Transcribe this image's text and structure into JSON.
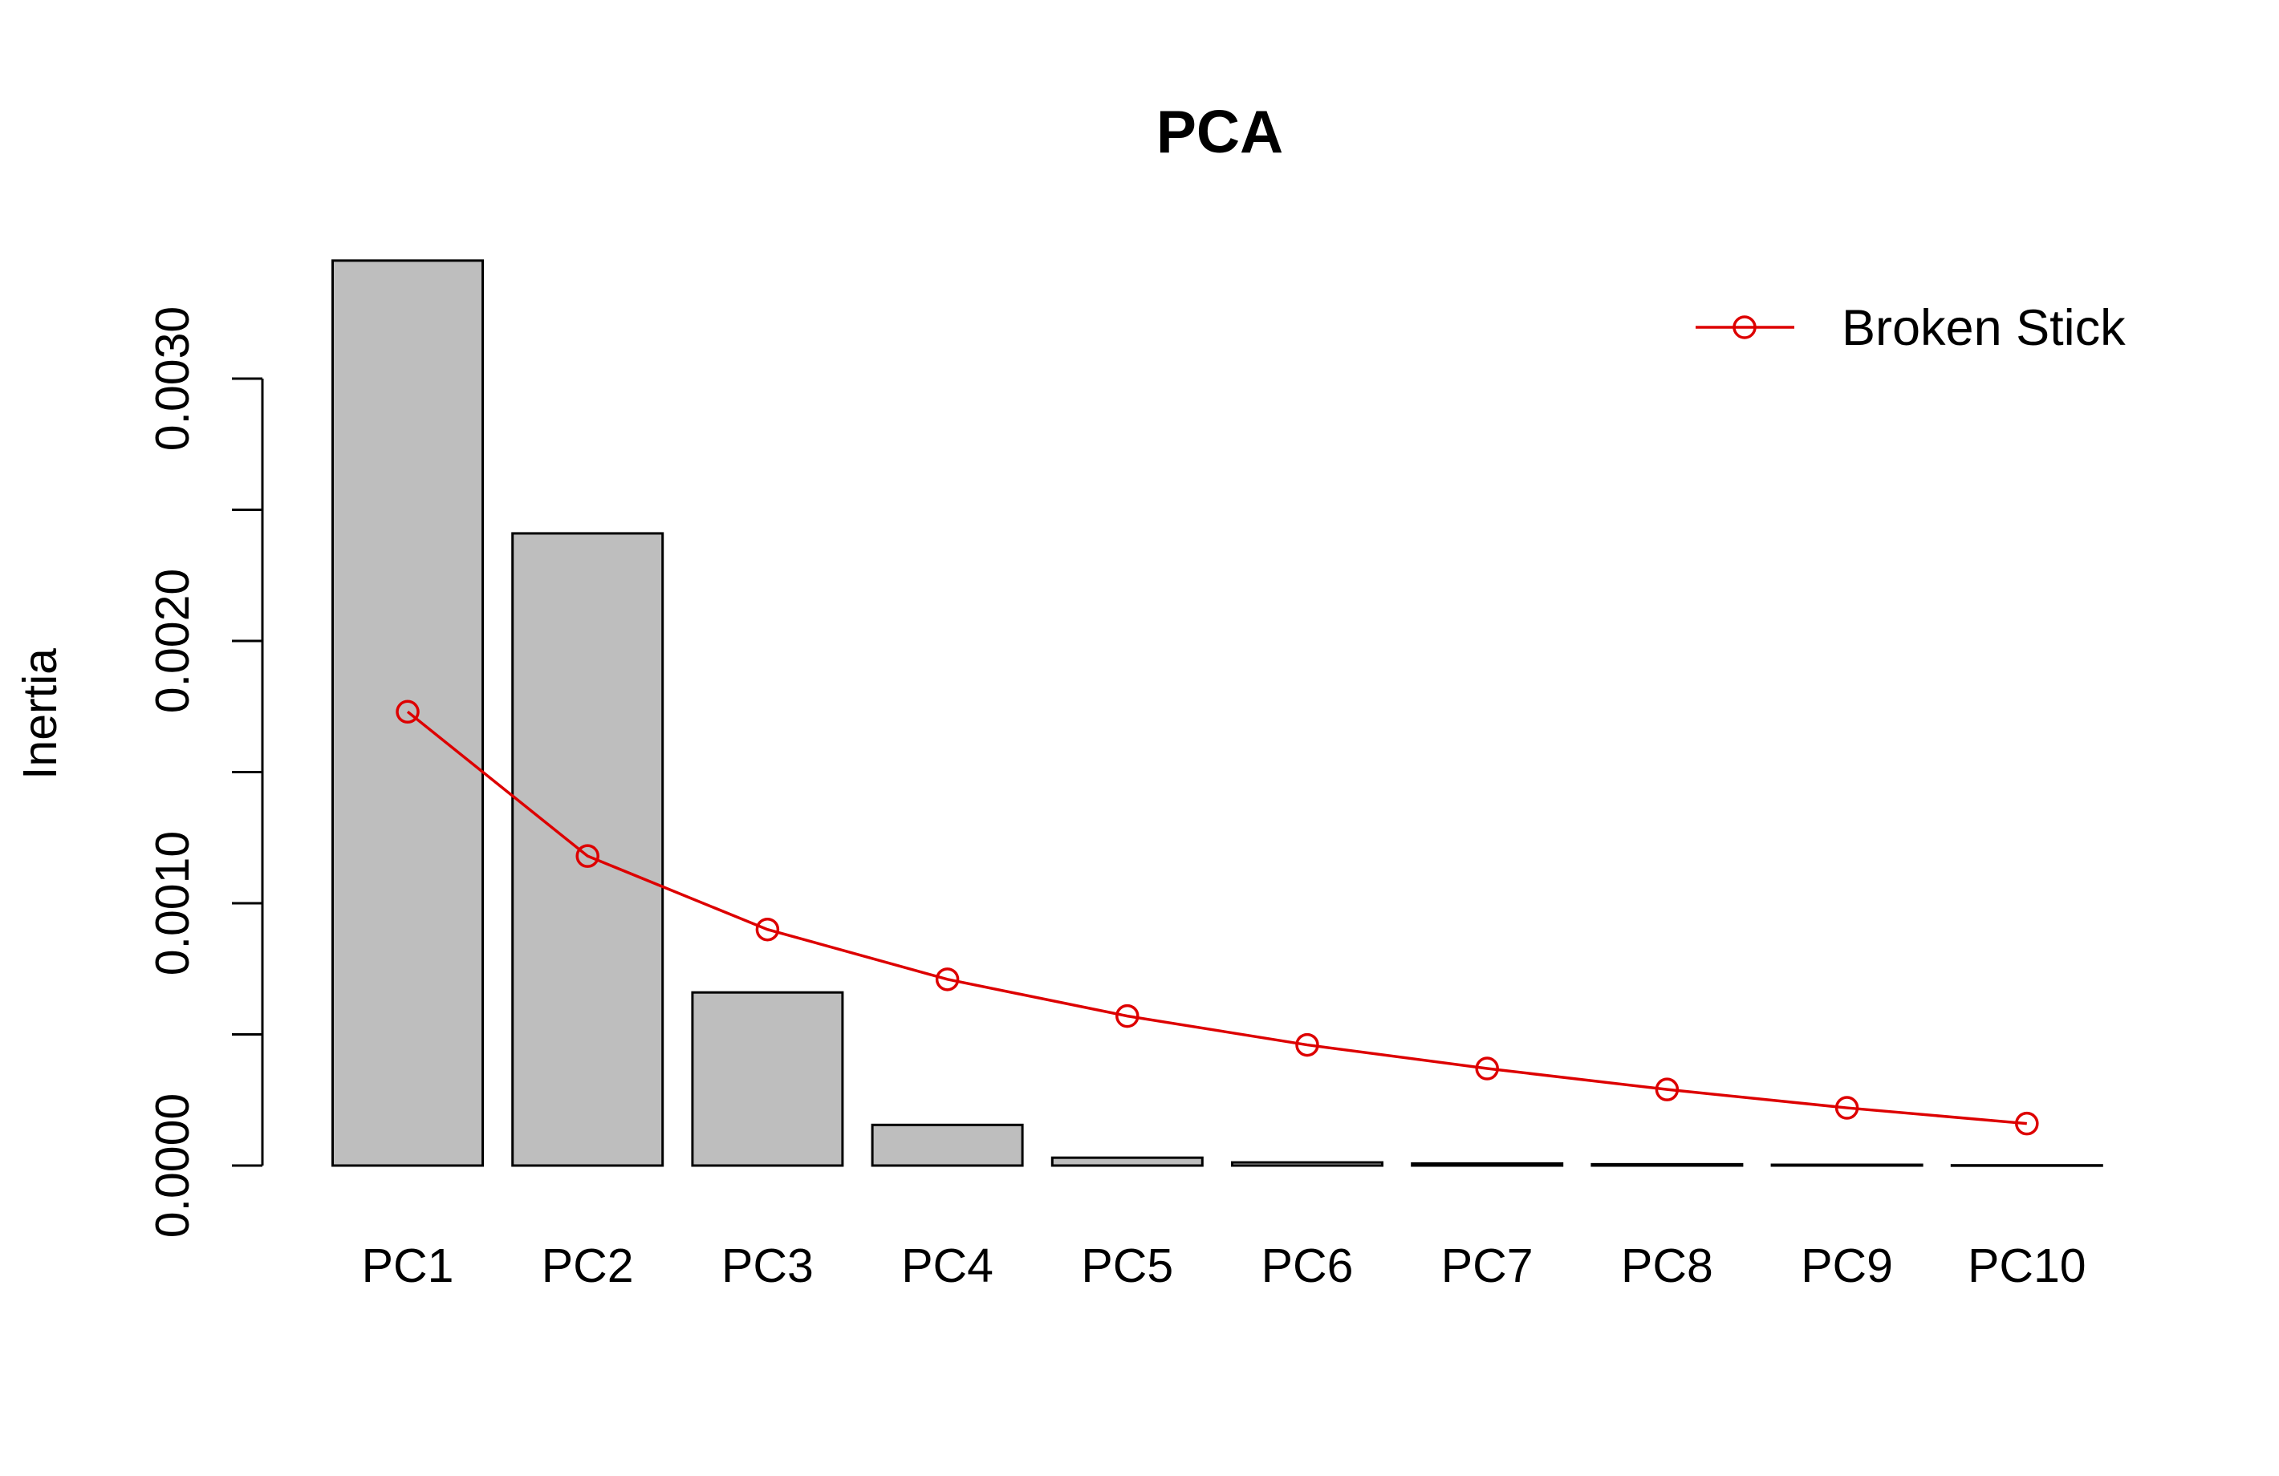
{
  "chart_data": {
    "type": "bar",
    "title": "PCA",
    "xlabel": "",
    "ylabel": "Inertia",
    "ylim": [
      0,
      0.0035
    ],
    "yticks": [
      0,
      0.0005,
      0.001,
      0.0015,
      0.002,
      0.0025,
      0.003
    ],
    "ytick_labels": [
      "0.0000",
      "",
      "0.0010",
      "",
      "0.0020",
      "",
      "0.0030"
    ],
    "categories": [
      "PC1",
      "PC2",
      "PC3",
      "PC4",
      "PC5",
      "PC6",
      "PC7",
      "PC8",
      "PC9",
      "PC10"
    ],
    "series": [
      {
        "type": "bar",
        "values": [
          0.00345,
          0.00241,
          0.00066,
          0.000155,
          3e-05,
          1.2e-05,
          8e-06,
          5e-06,
          3e-06,
          1e-06
        ],
        "color": "#bebebe"
      },
      {
        "name": "Broken Stick",
        "type": "line",
        "values": [
          0.00173,
          0.00118,
          0.0009,
          0.00071,
          0.00057,
          0.00046,
          0.00037,
          0.00029,
          0.00022,
          0.00016
        ],
        "color": "#dd0000",
        "marker": "open-circle"
      }
    ],
    "legend": {
      "position": "top-right",
      "entries": [
        "Broken Stick"
      ]
    },
    "grid": false
  }
}
